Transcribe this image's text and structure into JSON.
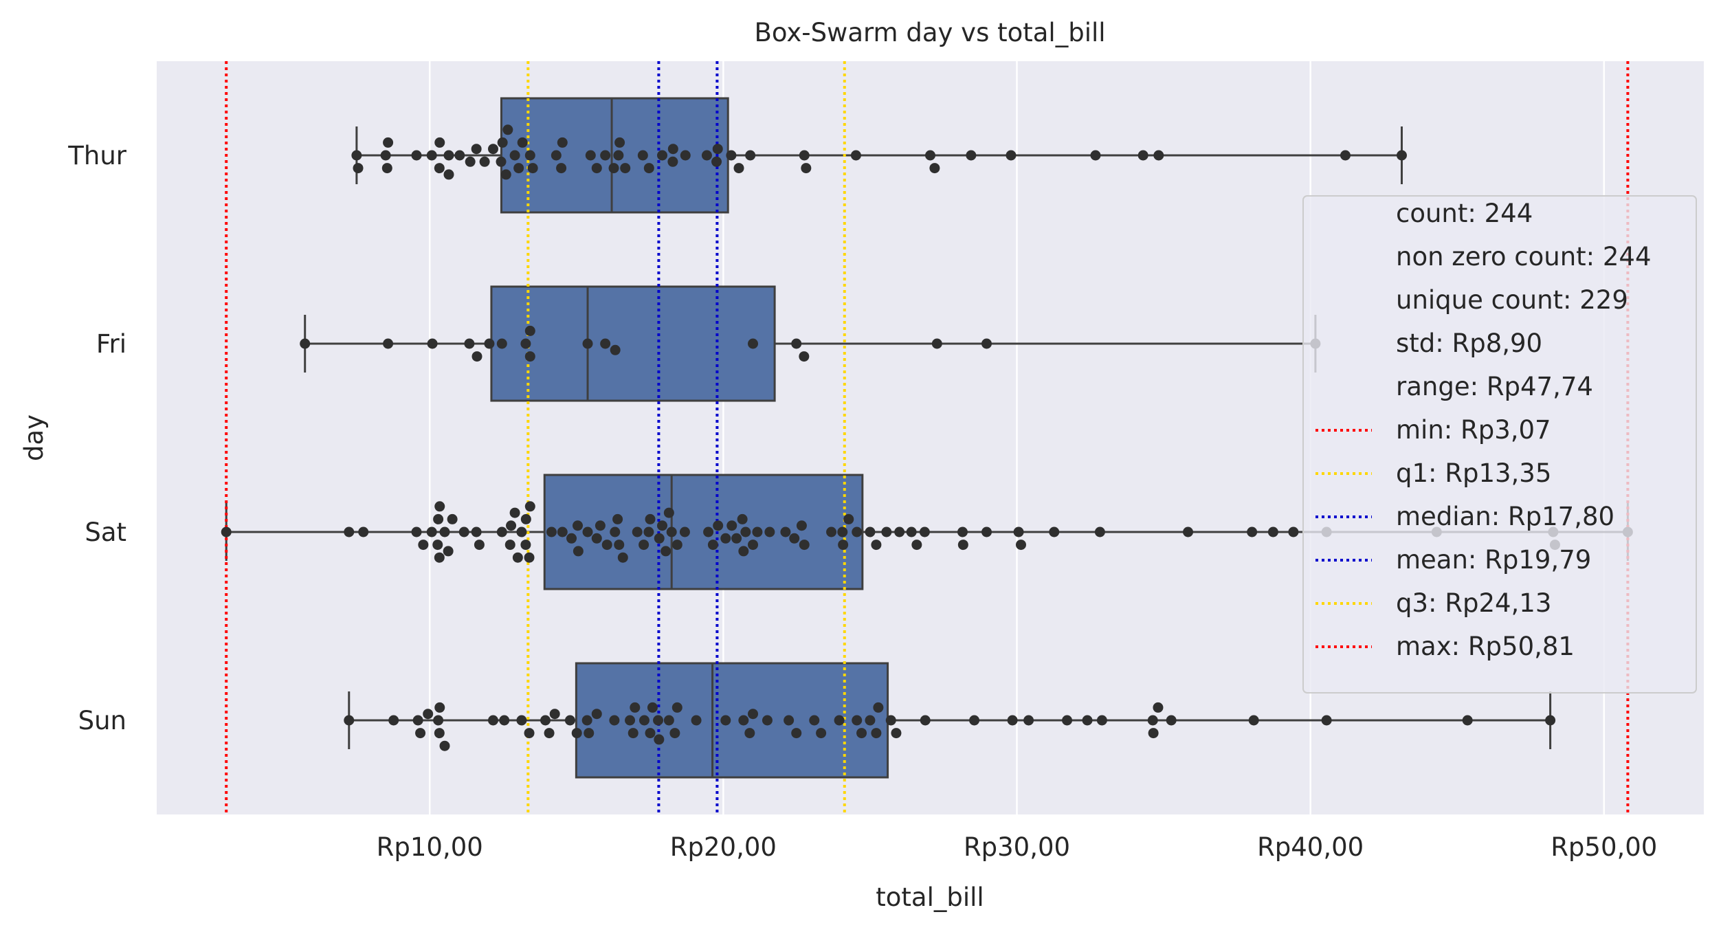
{
  "chart_data": {
    "type": "box-swarm",
    "title": "Box-Swarm day vs total_bill",
    "xlabel": "total_bill",
    "ylabel": "day",
    "xlim": [
      0.7,
      53.4
    ],
    "x_ticks": [
      10,
      20,
      30,
      40,
      50
    ],
    "x_tick_labels": [
      "Rp10,00",
      "Rp20,00",
      "Rp30,00",
      "Rp40,00",
      "Rp50,00"
    ],
    "categories": [
      "Thur",
      "Fri",
      "Sat",
      "Sun"
    ],
    "grid": true,
    "legend_placement": "right",
    "colors": {
      "background": "#eaeaf2",
      "box_fill": "#5573a6",
      "box_edge": "#3f3f3f",
      "point": "#2f2f2f",
      "grid": "#ffffff",
      "min_max": "#ff0000",
      "quartile": "#ffd700",
      "center": "#0000cc"
    },
    "boxes": [
      {
        "day": "Thur",
        "whisker_low": 7.51,
        "q1": 12.44,
        "median": 16.2,
        "q3": 20.16,
        "whisker_high": 43.11
      },
      {
        "day": "Fri",
        "whisker_low": 5.75,
        "q1": 12.1,
        "median": 15.38,
        "q3": 21.75,
        "whisker_high": 40.17
      },
      {
        "day": "Sat",
        "whisker_low": 3.07,
        "q1": 13.91,
        "median": 18.24,
        "q3": 24.74,
        "whisker_high": 50.81
      },
      {
        "day": "Sun",
        "whisker_low": 7.25,
        "q1": 14.99,
        "median": 19.63,
        "q3": 25.6,
        "whisker_high": 48.17
      }
    ],
    "points": {
      "Thur": [
        7.51,
        7.56,
        8.5,
        8.55,
        8.58,
        9.55,
        10.07,
        10.33,
        10.34,
        10.65,
        10.65,
        11.02,
        11.38,
        11.59,
        11.87,
        12.16,
        12.43,
        12.48,
        12.6,
        12.66,
        12.9,
        13.03,
        13.16,
        13.42,
        13.51,
        14.31,
        14.48,
        14.52,
        15.48,
        15.69,
        15.98,
        16.27,
        16.43,
        16.47,
        16.66,
        17.26,
        17.47,
        17.92,
        18.28,
        18.29,
        18.71,
        19.44,
        19.77,
        19.81,
        20.27,
        20.53,
        20.92,
        22.76,
        22.82,
        24.52,
        27.05,
        27.2,
        28.44,
        29.8,
        32.68,
        34.3,
        34.83,
        41.19,
        43.11
      ],
      "Fri": [
        5.75,
        8.58,
        10.09,
        11.35,
        11.61,
        12.03,
        12.46,
        13.27,
        13.42,
        13.42,
        15.38,
        15.98,
        16.32,
        21.01,
        22.49,
        22.75,
        27.28,
        28.97,
        40.17
      ],
      "Sat": [
        3.07,
        7.25,
        7.74,
        9.55,
        9.78,
        10.07,
        10.27,
        10.29,
        10.33,
        10.34,
        10.51,
        10.63,
        10.77,
        11.17,
        11.59,
        11.69,
        12.46,
        12.74,
        12.77,
        12.9,
        13.0,
        13.13,
        13.27,
        13.28,
        13.39,
        13.42,
        14.15,
        14.52,
        14.83,
        15.04,
        15.06,
        15.38,
        15.69,
        15.81,
        16.04,
        16.31,
        16.4,
        16.45,
        16.58,
        17.07,
        17.29,
        17.46,
        17.51,
        17.82,
        17.92,
        18.04,
        18.15,
        18.24,
        18.43,
        18.69,
        19.49,
        19.65,
        19.82,
        20.08,
        20.29,
        20.45,
        20.65,
        20.69,
        20.76,
        21.01,
        21.16,
        21.58,
        22.12,
        22.42,
        22.67,
        22.76,
        23.68,
        24.06,
        24.08,
        24.27,
        24.55,
        25.0,
        25.21,
        25.56,
        26.0,
        26.41,
        26.59,
        26.86,
        28.15,
        28.17,
        28.97,
        30.06,
        30.14,
        31.27,
        32.83,
        35.83,
        38.01,
        38.73,
        39.42,
        40.55,
        44.3,
        48.27,
        48.33,
        50.81
      ],
      "Sun": [
        7.25,
        8.77,
        9.6,
        9.68,
        9.94,
        10.29,
        10.33,
        10.34,
        10.51,
        12.16,
        12.54,
        13.13,
        13.39,
        13.94,
        14.07,
        14.26,
        14.78,
        15.01,
        15.36,
        15.42,
        15.69,
        16.29,
        16.82,
        16.93,
        16.99,
        17.31,
        17.51,
        17.59,
        17.78,
        17.81,
        18.15,
        18.35,
        18.43,
        19.08,
        20.08,
        20.69,
        20.9,
        21.01,
        21.5,
        22.23,
        22.49,
        23.1,
        23.33,
        23.95,
        24.55,
        24.71,
        25.0,
        25.21,
        25.28,
        25.71,
        25.89,
        26.88,
        28.55,
        29.85,
        30.4,
        31.71,
        32.4,
        32.9,
        34.63,
        34.65,
        34.81,
        35.26,
        38.07,
        40.55,
        45.35,
        48.17
      ]
    },
    "reference_lines": [
      {
        "name": "min",
        "value": 3.07,
        "label": "min: Rp3,07",
        "color": "#ff0000"
      },
      {
        "name": "q1",
        "value": 13.35,
        "label": "q1: Rp13,35",
        "color": "#ffd700"
      },
      {
        "name": "median",
        "value": 17.8,
        "label": "median: Rp17,80",
        "color": "#0000cc"
      },
      {
        "name": "mean",
        "value": 19.79,
        "label": "mean: Rp19,79",
        "color": "#0000cc"
      },
      {
        "name": "q3",
        "value": 24.13,
        "label": "q3: Rp24,13",
        "color": "#ffd700"
      },
      {
        "name": "max",
        "value": 50.81,
        "label": "max: Rp50,81",
        "color": "#ff0000"
      }
    ],
    "legend_stats": [
      "count: 244",
      "non zero count: 244",
      "unique count: 229",
      "std: Rp8,90",
      "range: Rp47,74"
    ]
  }
}
